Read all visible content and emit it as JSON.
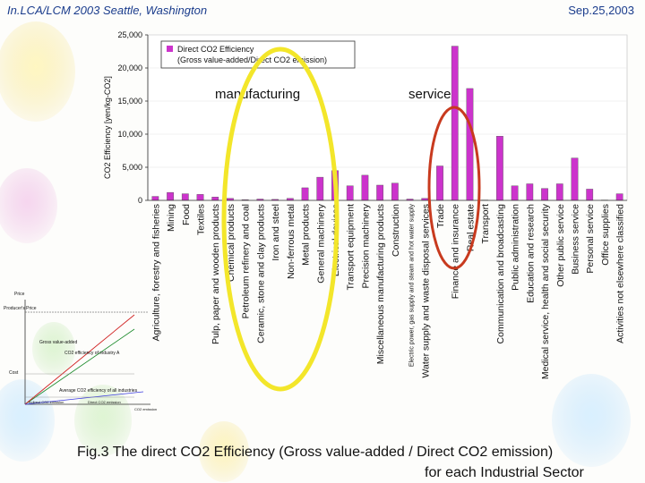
{
  "header": {
    "left": "In.LCA/LCM 2003  Seattle, Washington",
    "right": "Sep.25,2003"
  },
  "caption": {
    "line1": "Fig.3 The direct CO2 Efficiency (Gross value-added / Direct CO2 emission)",
    "line2": "for each Industrial Sector"
  },
  "inset": {
    "price_label": "Price",
    "producers_price": "Producer's Price",
    "gross_value_added": "Gross value-added",
    "co2_efficiency": "CO2 efficiency of industry A",
    "cost_label": "Cost",
    "average_label": "Average CO2 efficiency of all industries",
    "indirect_label": "Indirect CO2 emission",
    "direct_label": "Direct CO2 emission",
    "co2_axis": "CO2 emission"
  },
  "colors": {
    "bar": "#cc33cc",
    "plot_bg": "#ffffff",
    "axis": "#333333",
    "yellow_ring": "#f3e62a",
    "red_ring": "#c83a1e"
  },
  "chart_data": {
    "type": "bar",
    "title": "",
    "ylabel": "CO2 Efficiency [yen/kg-CO2]",
    "xlabel": "",
    "ylim": [
      0,
      25000
    ],
    "yticks": [
      0,
      5000,
      10000,
      15000,
      20000,
      25000
    ],
    "ytick_labels": [
      "0",
      "5,000",
      "10,000",
      "15,000",
      "20,000",
      "25,000"
    ],
    "legend": {
      "line1": "Direct CO2 Efficiency",
      "line2": "(Gross value-added/Direct CO2 emission)",
      "placement": "top-left"
    },
    "annotations": {
      "manufacturing": "manufacturing",
      "service": "service"
    },
    "categories": [
      "Agriculture, forestry and fisheries",
      "Mining",
      "Food",
      "Textiles",
      "Pulp, paper and wooden products",
      "Chemical products",
      "Petroleum refinery and coal",
      "Ceramic, stone and clay products",
      "Iron and steel",
      "Non-ferrous metal",
      "Metal products",
      "General machinery",
      "Electrical devices",
      "Transport equipment",
      "Precision machinery",
      "Miscellaneous manufacturing products",
      "Construction",
      "Electric power, gas supply and steam and hot water supply",
      "Water supply and waste disposal services",
      "Trade",
      "Finance and insurance",
      "Real estate",
      "Transport",
      "Communication and broadcasting",
      "Public administration",
      "Education and research",
      "Medical service, health and social security",
      "Other public service",
      "Business service",
      "Personal service",
      "Office supplies",
      "Activities not elsewhere classified"
    ],
    "values": [
      600,
      1200,
      1000,
      900,
      500,
      300,
      100,
      200,
      150,
      300,
      1900,
      3500,
      4500,
      2200,
      3800,
      2300,
      2600,
      200,
      300,
      5200,
      23300,
      16900,
      50,
      9700,
      2200,
      2500,
      1800,
      2500,
      6400,
      1700,
      50,
      1000
    ]
  }
}
